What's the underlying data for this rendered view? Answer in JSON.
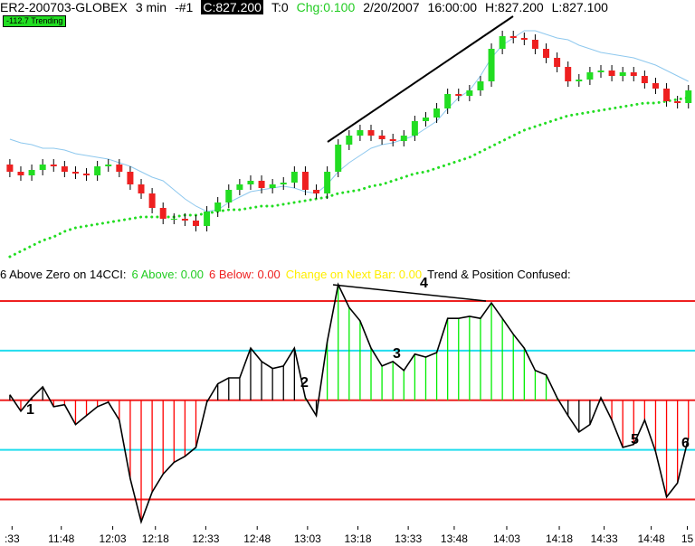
{
  "header": {
    "symbol": "ER2-200703-GLOBEX",
    "interval": "3 min",
    "id": "-#1",
    "close": "C:827.200",
    "tick": "T:0",
    "change": "Chg:0.100",
    "date": "2/20/2007",
    "time": "16:00:00",
    "high": "H:827.200",
    "low": "L:827.100",
    "badge": "-112.7 Trending"
  },
  "annotations": [
    "1",
    "2",
    "3",
    "4",
    "5",
    "6"
  ],
  "chart_data": [
    {
      "type": "candlestick",
      "xlim": [
        -0.9,
        62.6
      ],
      "ylim": [
        814.5,
        829
      ],
      "up_color": "#22dd22",
      "down_color": "#ee2020",
      "wick_color": "#000000",
      "open": [
        819.9,
        819.5,
        819.3,
        819.6,
        819.9,
        819.8,
        819.5,
        819.4,
        819.3,
        819.8,
        819.9,
        819.5,
        818.8,
        818.3,
        817.5,
        816.9,
        816.9,
        816.8,
        816.5,
        817.3,
        817.8,
        818.5,
        818.8,
        819.0,
        818.6,
        818.8,
        818.9,
        819.5,
        818.5,
        818.3,
        819.5,
        821.0,
        821.5,
        821.8,
        821.5,
        821.3,
        821.2,
        821.5,
        822.3,
        822.5,
        823.0,
        823.8,
        823.7,
        824.0,
        824.5,
        826.3,
        827.0,
        826.9,
        826.8,
        826.3,
        825.8,
        825.3,
        824.5,
        824.6,
        825.0,
        825.1,
        824.8,
        825.0,
        824.8,
        824.4,
        824.1,
        823.4,
        823.3
      ],
      "high": [
        820.2,
        819.8,
        819.9,
        820.2,
        820.2,
        820.1,
        819.8,
        819.7,
        820.1,
        820.2,
        820.2,
        819.8,
        819.1,
        818.6,
        817.8,
        817.2,
        817.2,
        817.1,
        817.6,
        818.1,
        818.8,
        819.1,
        819.3,
        819.3,
        819.1,
        819.2,
        819.8,
        819.8,
        818.8,
        819.8,
        821.3,
        821.8,
        822.1,
        822.1,
        821.8,
        821.6,
        821.8,
        822.6,
        822.8,
        823.3,
        824.1,
        824.1,
        824.3,
        824.8,
        826.6,
        827.3,
        827.3,
        827.2,
        827.1,
        826.6,
        826.1,
        825.6,
        824.9,
        825.3,
        825.4,
        825.4,
        825.3,
        825.3,
        825.1,
        824.7,
        824.4,
        823.7,
        824.3
      ],
      "low": [
        819.2,
        819.0,
        819.0,
        819.3,
        819.5,
        819.2,
        819.1,
        819.0,
        819.0,
        819.5,
        819.2,
        818.5,
        818.0,
        817.2,
        816.6,
        816.6,
        816.5,
        816.2,
        816.2,
        817.0,
        817.5,
        818.2,
        818.5,
        818.3,
        818.3,
        818.5,
        818.6,
        818.2,
        818.0,
        818.0,
        819.2,
        820.7,
        821.2,
        821.2,
        821.0,
        820.9,
        820.9,
        821.2,
        822.0,
        822.2,
        822.7,
        823.4,
        823.4,
        823.7,
        824.2,
        826.0,
        826.6,
        826.5,
        826.0,
        825.5,
        825.0,
        824.2,
        824.2,
        824.3,
        824.7,
        824.5,
        824.5,
        824.5,
        824.1,
        823.8,
        823.1,
        823.0,
        823.0
      ],
      "close": [
        819.5,
        819.3,
        819.6,
        819.9,
        819.8,
        819.5,
        819.4,
        819.3,
        819.8,
        819.9,
        819.5,
        818.8,
        818.3,
        817.5,
        816.9,
        816.9,
        816.8,
        816.5,
        817.3,
        817.8,
        818.5,
        818.8,
        819.0,
        818.6,
        818.8,
        818.9,
        819.5,
        818.5,
        818.3,
        819.5,
        821.0,
        821.5,
        821.8,
        821.5,
        821.3,
        821.2,
        821.5,
        822.3,
        822.5,
        823.0,
        823.8,
        823.7,
        824.0,
        824.5,
        826.3,
        827.0,
        826.9,
        826.8,
        826.3,
        825.8,
        825.3,
        824.5,
        824.6,
        825.0,
        825.1,
        824.8,
        825.0,
        824.8,
        824.4,
        824.1,
        823.4,
        823.3,
        824.0
      ],
      "overlays": [
        {
          "color": "#8ec8ee",
          "style": "line",
          "values": [
            821.3,
            821.1,
            821.0,
            820.8,
            820.8,
            820.7,
            820.5,
            820.4,
            820.3,
            820.2,
            820.0,
            819.8,
            819.5,
            819.2,
            819.0,
            818.5,
            818.0,
            817.6,
            817.3,
            817.4,
            817.8,
            818.1,
            818.4,
            818.5,
            818.6,
            818.7,
            818.6,
            818.4,
            818.3,
            818.8,
            819.5,
            820.0,
            820.4,
            820.8,
            821.0,
            821.1,
            821.3,
            821.5,
            821.9,
            822.3,
            823.0,
            823.6,
            824.0,
            824.8,
            825.8,
            826.5,
            826.9,
            827.3,
            827.3,
            827.1,
            826.9,
            826.8,
            826.5,
            826.3,
            826.1,
            826.0,
            825.9,
            825.8,
            825.6,
            825.4,
            825.1,
            824.8,
            824.5
          ]
        },
        {
          "color": "#22dd22",
          "style": "dotted",
          "values": [
            814.8,
            815.1,
            815.4,
            815.7,
            815.9,
            816.2,
            816.4,
            816.5,
            816.6,
            816.7,
            816.8,
            816.9,
            817.0,
            817.0,
            817.0,
            817.0,
            817.1,
            817.1,
            817.2,
            817.3,
            817.4,
            817.4,
            817.5,
            817.6,
            817.6,
            817.7,
            817.8,
            817.9,
            818.0,
            818.1,
            818.3,
            818.4,
            818.5,
            818.7,
            818.8,
            819.0,
            819.2,
            819.4,
            819.5,
            819.7,
            819.9,
            820.1,
            820.3,
            820.6,
            820.9,
            821.2,
            821.5,
            821.8,
            822.0,
            822.2,
            822.4,
            822.6,
            822.7,
            822.8,
            822.9,
            823.0,
            823.1,
            823.2,
            823.3,
            823.3,
            823.4,
            823.5,
            823.6
          ]
        }
      ]
    },
    {
      "type": "cci",
      "xlim": [
        -0.9,
        62.6
      ],
      "ylim": [
        -250,
        260
      ],
      "line_color": "#000000",
      "legend": [
        {
          "text": "6 Above Zero on 14CCI:",
          "color": "#000000"
        },
        {
          "text": "6 Above: 0.00",
          "color": "#22cc22"
        },
        {
          "text": "6 Below: 0.00",
          "color": "#ee2020"
        },
        {
          "text": "Change on Next Bar: 0.00",
          "color": "#ffee00"
        },
        {
          "text": "Trend & Position Confused:",
          "color": "#000000"
        }
      ],
      "levels": [
        {
          "value": 200,
          "color": "#ee2020"
        },
        {
          "value": 100,
          "color": "#22ddee"
        },
        {
          "value": 0,
          "color": "#ee2020"
        },
        {
          "value": -100,
          "color": "#22ddee"
        },
        {
          "value": -200,
          "color": "#ee2020"
        }
      ],
      "values": [
        11,
        -22,
        5,
        27,
        -13,
        -9,
        -49,
        -31,
        -13,
        -4,
        -40,
        -158,
        -245,
        -185,
        -149,
        -125,
        -113,
        -95,
        -4,
        33,
        45,
        45,
        105,
        78,
        64,
        69,
        105,
        5,
        -31,
        118,
        233,
        187,
        160,
        105,
        69,
        78,
        60,
        93,
        87,
        96,
        165,
        165,
        169,
        165,
        196,
        165,
        133,
        105,
        60,
        51,
        5,
        -31,
        -64,
        -49,
        5,
        -40,
        -95,
        -89,
        -40,
        -104,
        -195,
        -167,
        -76
      ],
      "bar_colors": [
        "#000000",
        "#ff0000",
        "#000000",
        "#000000",
        "#ff0000",
        "#ff0000",
        "#ff0000",
        "#ff0000",
        "#ff0000",
        "#ff0000",
        "#ff0000",
        "#ff0000",
        "#ff0000",
        "#ff0000",
        "#ff0000",
        "#ff0000",
        "#ff0000",
        "#ff0000",
        "#000000",
        "#000000",
        "#000000",
        "#000000",
        "#000000",
        "#000000",
        "#000000",
        "#000000",
        "#000000",
        "#00ee00",
        "#000000",
        "#00ee00",
        "#00ee00",
        "#00ee00",
        "#00ee00",
        "#00ee00",
        "#00ee00",
        "#00ee00",
        "#00ee00",
        "#00ee00",
        "#00ee00",
        "#00ee00",
        "#00ee00",
        "#00ee00",
        "#00ee00",
        "#00ee00",
        "#00ee00",
        "#00ee00",
        "#00ee00",
        "#00ee00",
        "#00ee00",
        "#00ee00",
        "#00ee00",
        "#000000",
        "#000000",
        "#000000",
        "#000000",
        "#ff0000",
        "#ff0000",
        "#ff0000",
        "#ff0000",
        "#ff0000",
        "#ff0000",
        "#ff0000",
        "#ff0000"
      ],
      "xticks": [
        {
          "value": 0.2,
          "label": ":33"
        },
        {
          "value": 4.7,
          "label": "11:48"
        },
        {
          "value": 9.4,
          "label": "12:03"
        },
        {
          "value": 13.3,
          "label": "12:18"
        },
        {
          "value": 17.9,
          "label": "12:33"
        },
        {
          "value": 22.6,
          "label": "12:48"
        },
        {
          "value": 27.2,
          "label": "13:03"
        },
        {
          "value": 31.8,
          "label": "13:18"
        },
        {
          "value": 36.4,
          "label": "13:33"
        },
        {
          "value": 40.6,
          "label": "13:48"
        },
        {
          "value": 45.4,
          "label": "14:03"
        },
        {
          "value": 50.2,
          "label": "14:18"
        },
        {
          "value": 54.3,
          "label": "14:33"
        },
        {
          "value": 58.6,
          "label": "14:48"
        },
        {
          "value": 61.9,
          "label": "15"
        }
      ]
    }
  ]
}
